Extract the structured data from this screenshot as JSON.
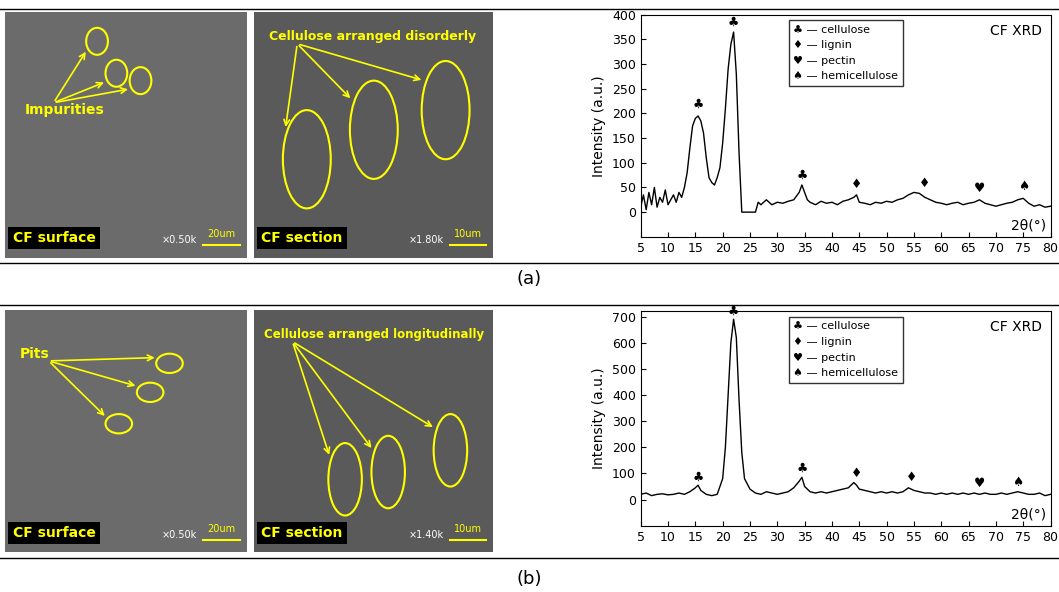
{
  "panel_labels": [
    "(a)",
    "(b)"
  ],
  "images": [
    [
      {
        "caption": "CF surface",
        "annotation": "Impurities",
        "magnification": "×0.50k",
        "scale": "20um"
      },
      {
        "caption": "CF section",
        "annotation": "Cellulose arranged disorderly",
        "magnification": "×1.80k",
        "scale": "10um"
      }
    ],
    [
      {
        "caption": "CF surface",
        "annotation": "Pits",
        "magnification": "×0.50k",
        "scale": "20um"
      },
      {
        "caption": "CF section",
        "annotation": "Cellulose arranged longitudinally",
        "magnification": "×1.40k",
        "scale": "10um"
      }
    ]
  ],
  "chart_data": [
    {
      "type": "line",
      "title": "CF XRD",
      "x_label": "2θ(°)",
      "y_label": "Intensity (a.u.)",
      "color": "#000000",
      "x": [
        5,
        5.5,
        6,
        6.5,
        7,
        7.5,
        8,
        8.5,
        9,
        9.5,
        10,
        10.5,
        11,
        11.5,
        12,
        12.5,
        13,
        13.5,
        14,
        14.5,
        15,
        15.5,
        16,
        16.5,
        17,
        17.5,
        18,
        18.5,
        19,
        19.5,
        20,
        20.5,
        21,
        21.5,
        22,
        22.5,
        23,
        23.5,
        24,
        25,
        26,
        26.5,
        27,
        28,
        29,
        30,
        31,
        32,
        33,
        34,
        34.5,
        35,
        35.5,
        36,
        37,
        38,
        39,
        40,
        41,
        42,
        43,
        44,
        44.5,
        45,
        46,
        47,
        48,
        49,
        50,
        51,
        52,
        53,
        54,
        55,
        56,
        57,
        58,
        59,
        60,
        61,
        62,
        63,
        64,
        65,
        66,
        67,
        68,
        69,
        70,
        71,
        72,
        73,
        74,
        75,
        76,
        77,
        78,
        79,
        80
      ],
      "values": [
        10,
        35,
        5,
        40,
        15,
        50,
        10,
        30,
        20,
        45,
        15,
        25,
        35,
        20,
        40,
        30,
        50,
        80,
        130,
        175,
        190,
        195,
        185,
        160,
        110,
        70,
        60,
        55,
        70,
        90,
        140,
        210,
        290,
        340,
        365,
        280,
        120,
        0,
        0,
        0,
        0,
        20,
        15,
        25,
        15,
        20,
        18,
        22,
        25,
        40,
        55,
        40,
        25,
        20,
        15,
        22,
        18,
        20,
        15,
        22,
        25,
        30,
        35,
        20,
        18,
        15,
        20,
        18,
        22,
        20,
        25,
        28,
        35,
        40,
        38,
        30,
        25,
        20,
        18,
        15,
        18,
        20,
        15,
        18,
        20,
        25,
        18,
        15,
        12,
        15,
        18,
        20,
        25,
        28,
        18,
        12,
        15,
        10,
        12
      ],
      "xlim": [
        5,
        80
      ],
      "xticks": [
        5,
        10,
        15,
        20,
        25,
        30,
        35,
        40,
        45,
        50,
        55,
        60,
        65,
        70,
        75,
        80
      ],
      "ylim": [
        -50,
        400
      ],
      "yticks": [
        0,
        50,
        100,
        150,
        200,
        250,
        300,
        350,
        400
      ],
      "legend": "upper center",
      "legend_entries": [
        "♣ — cellulose",
        "♦ — lignin",
        "♥ — pectin",
        "♠ — hemicellulose"
      ],
      "peaks": [
        {
          "x": 15.5,
          "y": 205,
          "symbol": "♣"
        },
        {
          "x": 22,
          "y": 372,
          "symbol": "♣"
        },
        {
          "x": 34.5,
          "y": 62,
          "symbol": "♣"
        },
        {
          "x": 44.5,
          "y": 42,
          "symbol": "♦"
        },
        {
          "x": 57,
          "y": 45,
          "symbol": "♦"
        },
        {
          "x": 67,
          "y": 35,
          "symbol": "♥"
        },
        {
          "x": 75,
          "y": 38,
          "symbol": "♠"
        }
      ]
    },
    {
      "type": "line",
      "title": "CF XRD",
      "x_label": "2θ(°)",
      "y_label": "Intensity (a.u.)",
      "color": "#000000",
      "x": [
        5,
        6,
        7,
        8,
        9,
        10,
        11,
        12,
        13,
        14,
        15,
        15.5,
        16,
        17,
        18,
        19,
        20,
        20.5,
        21,
        21.5,
        22,
        22.5,
        23,
        23.5,
        24,
        25,
        26,
        27,
        28,
        29,
        30,
        31,
        32,
        33,
        34,
        34.5,
        35,
        36,
        37,
        38,
        39,
        40,
        41,
        42,
        43,
        44,
        44.5,
        45,
        46,
        47,
        48,
        49,
        50,
        51,
        52,
        53,
        54,
        55,
        56,
        57,
        58,
        59,
        60,
        61,
        62,
        63,
        64,
        65,
        66,
        67,
        68,
        69,
        70,
        71,
        72,
        73,
        74,
        75,
        76,
        77,
        78,
        79,
        80
      ],
      "values": [
        20,
        25,
        15,
        20,
        22,
        18,
        20,
        25,
        20,
        30,
        45,
        55,
        35,
        20,
        15,
        20,
        80,
        200,
        400,
        600,
        690,
        620,
        380,
        180,
        80,
        40,
        25,
        20,
        30,
        25,
        20,
        25,
        30,
        45,
        70,
        85,
        50,
        30,
        25,
        30,
        25,
        30,
        35,
        40,
        45,
        65,
        55,
        40,
        35,
        30,
        25,
        30,
        25,
        30,
        25,
        30,
        45,
        35,
        30,
        25,
        25,
        20,
        25,
        20,
        25,
        20,
        25,
        20,
        25,
        20,
        25,
        20,
        20,
        25,
        20,
        25,
        30,
        25,
        20,
        20,
        25,
        15,
        20
      ],
      "xlim": [
        5,
        80
      ],
      "xticks": [
        5,
        10,
        15,
        20,
        25,
        30,
        35,
        40,
        45,
        50,
        55,
        60,
        65,
        70,
        75,
        80
      ],
      "ylim": [
        -100,
        720
      ],
      "yticks": [
        0,
        100,
        200,
        300,
        400,
        500,
        600,
        700
      ],
      "legend": "upper center",
      "legend_entries": [
        "♣ — cellulose",
        "♦ — lignin",
        "♥ — pectin",
        "♠ — hemicellulose"
      ],
      "peaks": [
        {
          "x": 15.5,
          "y": 62,
          "symbol": "♣"
        },
        {
          "x": 22,
          "y": 697,
          "symbol": "♣"
        },
        {
          "x": 34.5,
          "y": 95,
          "symbol": "♣"
        },
        {
          "x": 44.5,
          "y": 75,
          "symbol": "♦"
        },
        {
          "x": 54.5,
          "y": 60,
          "symbol": "♦"
        },
        {
          "x": 67,
          "y": 35,
          "symbol": "♥"
        },
        {
          "x": 74,
          "y": 40,
          "symbol": "♠"
        }
      ]
    }
  ]
}
